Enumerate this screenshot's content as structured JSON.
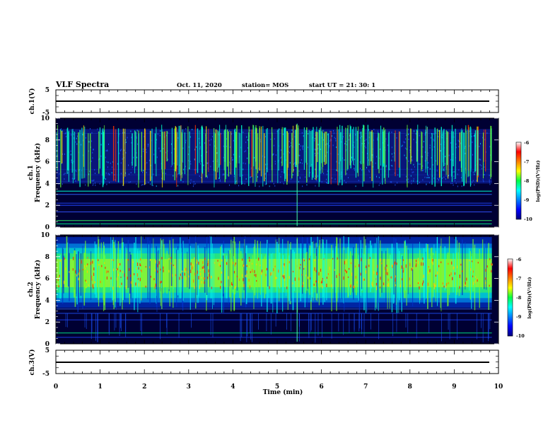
{
  "header": {
    "title": "VLF Spectra",
    "date": "Oct. 11, 2020",
    "station": "station= MOS",
    "start": "start  UT  =   21: 30: 1"
  },
  "chart_data": [
    {
      "type": "line",
      "panel": "ch1-voltage",
      "ylabel": "ch.1(V)",
      "y_ticks": [
        "5",
        "-5"
      ],
      "ylim": [
        -5,
        5
      ],
      "x": [
        0,
        9.85
      ],
      "values": [
        0,
        0
      ]
    },
    {
      "type": "heatmap",
      "panel": "ch1-spectrogram",
      "ylabel": "ch.1\nFrequency  (kHz)",
      "ylabel_line1": "ch.1",
      "ylabel_line2": "Frequency  (kHz)",
      "y_ticks": [
        "0",
        "2",
        "4",
        "6",
        "8",
        "10"
      ],
      "ylim": [
        0,
        10
      ],
      "xlim": [
        0,
        10
      ],
      "colorbar": {
        "label": "log(PSD)(V²/Hz)",
        "ticks": [
          "-6",
          "-7",
          "-8",
          "-9",
          "-10"
        ],
        "range": [
          -10,
          -6
        ]
      }
    },
    {
      "type": "heatmap",
      "panel": "ch2-spectrogram",
      "ylabel_line1": "ch.2",
      "ylabel_line2": "Frequency  (kHz)",
      "y_ticks": [
        "0",
        "2",
        "4",
        "6",
        "8",
        "10"
      ],
      "ylim": [
        0,
        10
      ],
      "xlim": [
        0,
        10
      ],
      "colorbar": {
        "label": "log(PSD)(V²/Hz)",
        "ticks": [
          "-6",
          "-7",
          "-8",
          "-9",
          "-10"
        ],
        "range": [
          -10,
          -6
        ]
      }
    },
    {
      "type": "line",
      "panel": "ch3-voltage",
      "ylabel": "ch.3(V)",
      "y_ticks": [
        "5",
        "-5"
      ],
      "ylim": [
        -5,
        5
      ],
      "x": [
        0,
        9.85
      ],
      "values": [
        0,
        0
      ]
    }
  ],
  "x_axis": {
    "label": "Time  (min)",
    "ticks": [
      "0",
      "1",
      "2",
      "3",
      "4",
      "5",
      "6",
      "7",
      "8",
      "9",
      "10"
    ],
    "range": [
      0,
      10
    ]
  },
  "colors": {
    "background_spectrogram": "#000033",
    "trace": "#000000"
  }
}
